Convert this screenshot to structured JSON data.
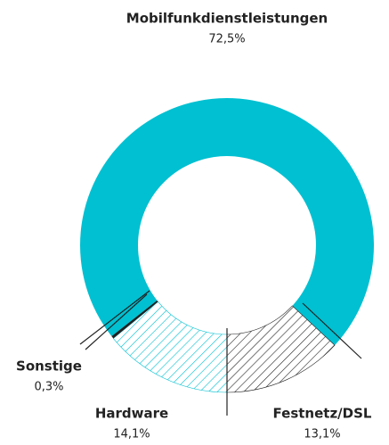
{
  "chart_data": {
    "type": "donut",
    "categories": [
      "Mobilfunkdienstleistungen",
      "Festnetz/DSL",
      "Hardware",
      "Sonstige"
    ],
    "values": [
      72.5,
      13.1,
      14.1,
      0.3
    ],
    "value_labels": [
      "72,5%",
      "13,1%",
      "14,1%",
      "0,3%"
    ],
    "colors": [
      "#00c0d1",
      "#222222",
      "#00c0d1",
      "#222222"
    ],
    "hatched": [
      false,
      true,
      true,
      false
    ]
  }
}
